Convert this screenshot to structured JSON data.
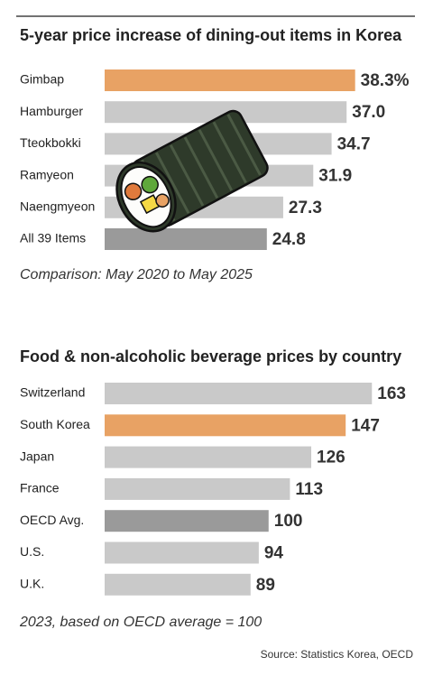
{
  "chart_data": [
    {
      "type": "bar",
      "orientation": "horizontal",
      "title": "5-year price increase of dining-out items in Korea",
      "note": "Comparison: May 2020 to May 2025",
      "categories": [
        "Gimbap",
        "Hamburger",
        "Tteokbokki",
        "Ramyeon",
        "Naengmyeon",
        "All 39 Items"
      ],
      "values": [
        38.3,
        37.0,
        34.7,
        31.9,
        27.3,
        24.8
      ],
      "value_labels": [
        "38.3%",
        "37.0",
        "34.7",
        "31.9",
        "27.3",
        "24.8"
      ],
      "colors": [
        "#e8a264",
        "#c9c9c9",
        "#c9c9c9",
        "#c9c9c9",
        "#c9c9c9",
        "#9a9a9a"
      ],
      "xlim": [
        0,
        40
      ]
    },
    {
      "type": "bar",
      "orientation": "horizontal",
      "title": "Food & non-alcoholic beverage prices by country",
      "note": "2023, based on OECD average = 100",
      "categories": [
        "Switzerland",
        "South Korea",
        "Japan",
        "France",
        "OECD Avg.",
        "U.S.",
        "U.K."
      ],
      "values": [
        163,
        147,
        126,
        113,
        100,
        94,
        89
      ],
      "colors": [
        "#c9c9c9",
        "#e8a264",
        "#c9c9c9",
        "#c9c9c9",
        "#9a9a9a",
        "#c9c9c9",
        "#c9c9c9"
      ],
      "xlim": [
        0,
        170
      ]
    }
  ],
  "source": "Source: Statistics Korea, OECD"
}
